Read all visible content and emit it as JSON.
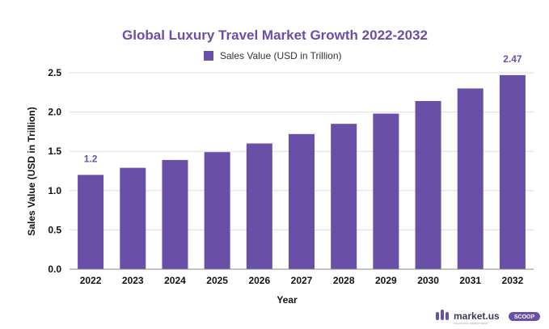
{
  "chart_data": {
    "type": "bar",
    "title": "Global Luxury Travel Market Growth 2022-2032",
    "xlabel": "Year",
    "ylabel": "Sales Value (USD in Trillion)",
    "ylim": [
      0,
      2.5
    ],
    "yticks": [
      "0.0",
      "0.5",
      "1.0",
      "1.5",
      "2.0",
      "2.5"
    ],
    "categories": [
      "2022",
      "2023",
      "2024",
      "2025",
      "2026",
      "2027",
      "2028",
      "2029",
      "2030",
      "2031",
      "2032"
    ],
    "series": [
      {
        "name": "Sales Value (USD in Trillion)",
        "values": [
          1.2,
          1.29,
          1.39,
          1.49,
          1.6,
          1.72,
          1.85,
          1.98,
          2.14,
          2.3,
          2.47
        ]
      }
    ],
    "data_labels": [
      {
        "category": "2022",
        "text": "1.2"
      },
      {
        "category": "2032",
        "text": "2.47"
      }
    ],
    "grid": "horizontal",
    "legend_position": "top-center"
  },
  "colors": {
    "bar": "#6a4fa8",
    "title": "#6a4fa8",
    "grid": "#dddddd",
    "axis": "#888888"
  },
  "branding": {
    "logo_text": "market.us",
    "badge_text": "SCOOP",
    "tagline": "ASIA PACIFIC MARKET NEWS",
    "icon": "market-us-logo-icon"
  }
}
